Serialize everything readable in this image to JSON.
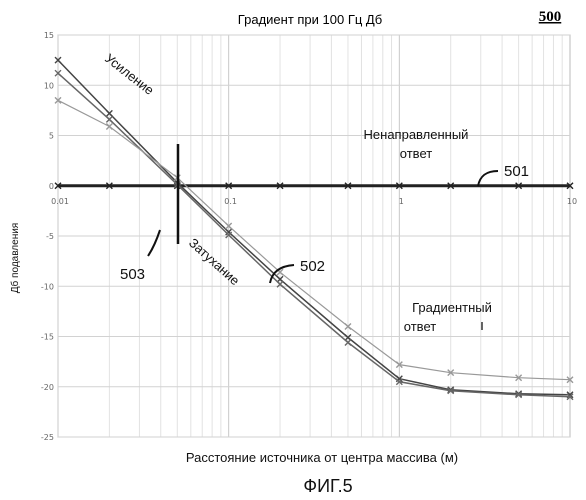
{
  "figure_number": "500",
  "caption": "ФИГ.5",
  "chart_data": {
    "type": "line",
    "title": "Градиент при 100 Гц Дб",
    "xlabel": "Расстояние источника от центра массива (м)",
    "ylabel": "Дб подавления",
    "x_scale": "log",
    "xlim": [
      0.01,
      10
    ],
    "ylim": [
      -25,
      15
    ],
    "grid": true,
    "x_ticks": [
      {
        "value": 0.01,
        "label": "0.01"
      },
      {
        "value": 0.1,
        "label": "0.1"
      },
      {
        "value": 1,
        "label": "1"
      },
      {
        "value": 10,
        "label": "10"
      }
    ],
    "y_ticks": [
      {
        "value": 15,
        "label": "15"
      },
      {
        "value": 10,
        "label": "10"
      },
      {
        "value": 5,
        "label": "5"
      },
      {
        "value": 0,
        "label": "0"
      },
      {
        "value": -5,
        "label": "-5"
      },
      {
        "value": -10,
        "label": "-10"
      },
      {
        "value": -15,
        "label": "-15"
      },
      {
        "value": -20,
        "label": "-20"
      },
      {
        "value": -25,
        "label": "-25"
      }
    ],
    "series": [
      {
        "id": "501",
        "color": "#222222",
        "width": 3,
        "x": [
          0.01,
          0.02,
          0.05,
          0.1,
          0.2,
          0.5,
          1,
          2,
          5,
          10
        ],
        "y": [
          0,
          0,
          0,
          0,
          0,
          0,
          0,
          0,
          0,
          0
        ]
      },
      {
        "id": "502a",
        "color": "#444444",
        "width": 1.5,
        "x": [
          0.01,
          0.02,
          0.05,
          0.1,
          0.2,
          0.5,
          1,
          2,
          5,
          10
        ],
        "y": [
          12.5,
          7.2,
          0.3,
          -4.6,
          -9.3,
          -15.1,
          -19.2,
          -20.3,
          -20.7,
          -20.8
        ]
      },
      {
        "id": "502b",
        "color": "#666666",
        "width": 1.5,
        "x": [
          0.01,
          0.02,
          0.05,
          0.1,
          0.2,
          0.5,
          1,
          2,
          5,
          10
        ],
        "y": [
          11.2,
          6.6,
          0.1,
          -4.9,
          -9.8,
          -15.6,
          -19.5,
          -20.4,
          -20.8,
          -21.0
        ]
      },
      {
        "id": "502c",
        "color": "#999999",
        "width": 1.2,
        "x": [
          0.01,
          0.02,
          0.05,
          0.1,
          0.2,
          0.5,
          1,
          2,
          5,
          10
        ],
        "y": [
          8.5,
          5.9,
          0.8,
          -4.0,
          -8.6,
          -14.0,
          -17.8,
          -18.6,
          -19.1,
          -19.3
        ]
      }
    ],
    "annotations": [
      {
        "text": "Усиление"
      },
      {
        "text": "Затухание"
      },
      {
        "text": "Ненаправленный"
      },
      {
        "text": "ответ"
      },
      {
        "text": "Градиентный"
      },
      {
        "text": "ответ"
      }
    ],
    "callouts": [
      {
        "text": "501"
      },
      {
        "text": "502"
      },
      {
        "text": "503"
      }
    ]
  }
}
